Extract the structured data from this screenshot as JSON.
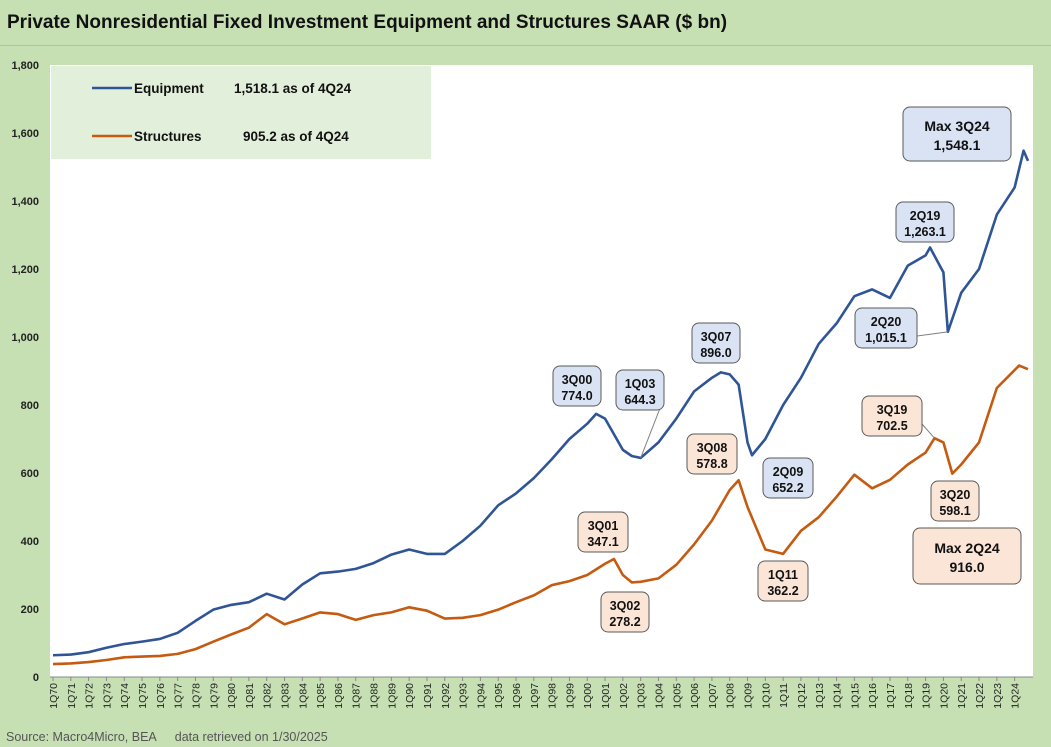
{
  "title": "Private Nonresidential Fixed Investment Equipment and Structures SAAR ($ bn)",
  "source": "Source: Macro4Micro, BEA",
  "retrieved": "data retrieved on 1/30/2025",
  "colors": {
    "equipment": "#2f5597",
    "structures": "#c55a11",
    "plot_bg": "#ffffff",
    "frame_bg": "#c6e0b4",
    "legend_bg": "#e2efda",
    "eq_callout_bg": "#dae3f3",
    "st_callout_bg": "#fbe5d6"
  },
  "legend": [
    {
      "series": "equipment",
      "name": "Equipment",
      "note": "1,518.1 as of 4Q24"
    },
    {
      "series": "structures",
      "name": "Structures",
      "note": "905.2 as of 4Q24"
    }
  ],
  "chart_data": {
    "type": "line",
    "x_start": "1Q70",
    "ylim": [
      0,
      1800
    ],
    "yticks": [
      0,
      200,
      400,
      600,
      800,
      1000,
      1200,
      1400,
      1600,
      1800
    ],
    "ytick_labels": [
      "0",
      "200",
      "400",
      "600",
      "800",
      "1,000",
      "1,200",
      "1,400",
      "1,600",
      "1,800"
    ],
    "xtick_labels": [
      "1Q70",
      "1Q71",
      "1Q72",
      "1Q73",
      "1Q74",
      "1Q75",
      "1Q76",
      "1Q77",
      "1Q78",
      "1Q79",
      "1Q80",
      "1Q81",
      "1Q82",
      "1Q83",
      "1Q84",
      "1Q85",
      "1Q86",
      "1Q87",
      "1Q88",
      "1Q89",
      "1Q90",
      "1Q91",
      "1Q92",
      "1Q93",
      "1Q94",
      "1Q95",
      "1Q96",
      "1Q97",
      "1Q98",
      "1Q99",
      "1Q00",
      "1Q01",
      "1Q02",
      "1Q03",
      "1Q04",
      "1Q05",
      "1Q06",
      "1Q07",
      "1Q08",
      "1Q09",
      "1Q10",
      "1Q11",
      "1Q12",
      "1Q13",
      "1Q14",
      "1Q15",
      "1Q16",
      "1Q17",
      "1Q18",
      "1Q19",
      "1Q20",
      "1Q21",
      "1Q22",
      "1Q23",
      "1Q24"
    ],
    "grid": false,
    "legend_position": "top-left",
    "series": [
      {
        "name": "Equipment",
        "key": "equipment",
        "points": [
          [
            "1Q70",
            64
          ],
          [
            "1Q71",
            66
          ],
          [
            "1Q72",
            73
          ],
          [
            "1Q73",
            86
          ],
          [
            "1Q74",
            97
          ],
          [
            "1Q75",
            104
          ],
          [
            "1Q76",
            112
          ],
          [
            "1Q77",
            130
          ],
          [
            "1Q78",
            165
          ],
          [
            "1Q79",
            198
          ],
          [
            "1Q80",
            212
          ],
          [
            "1Q81",
            220
          ],
          [
            "1Q82",
            245
          ],
          [
            "1Q83",
            228
          ],
          [
            "1Q84",
            272
          ],
          [
            "1Q85",
            305
          ],
          [
            "1Q86",
            310
          ],
          [
            "1Q87",
            318
          ],
          [
            "1Q88",
            335
          ],
          [
            "1Q89",
            360
          ],
          [
            "1Q90",
            375
          ],
          [
            "1Q91",
            362
          ],
          [
            "1Q92",
            362
          ],
          [
            "1Q93",
            400
          ],
          [
            "1Q94",
            445
          ],
          [
            "1Q95",
            505
          ],
          [
            "1Q96",
            540
          ],
          [
            "1Q97",
            585
          ],
          [
            "1Q98",
            640
          ],
          [
            "1Q99",
            700
          ],
          [
            "1Q00",
            745
          ],
          [
            "3Q00",
            774.0
          ],
          [
            "1Q01",
            760
          ],
          [
            "1Q02",
            668
          ],
          [
            "3Q02",
            650
          ],
          [
            "1Q03",
            644.3
          ],
          [
            "1Q04",
            690
          ],
          [
            "1Q05",
            760
          ],
          [
            "1Q06",
            840
          ],
          [
            "1Q07",
            880
          ],
          [
            "3Q07",
            896.0
          ],
          [
            "1Q08",
            890
          ],
          [
            "3Q08",
            860
          ],
          [
            "1Q09",
            690
          ],
          [
            "2Q09",
            652.2
          ],
          [
            "1Q10",
            700
          ],
          [
            "1Q11",
            800
          ],
          [
            "1Q12",
            880
          ],
          [
            "1Q13",
            980
          ],
          [
            "1Q14",
            1040
          ],
          [
            "1Q15",
            1120
          ],
          [
            "1Q16",
            1140
          ],
          [
            "1Q17",
            1115
          ],
          [
            "1Q18",
            1210
          ],
          [
            "1Q19",
            1240
          ],
          [
            "2Q19",
            1263.1
          ],
          [
            "1Q20",
            1190
          ],
          [
            "2Q20",
            1015.1
          ],
          [
            "1Q21",
            1130
          ],
          [
            "1Q22",
            1200
          ],
          [
            "1Q23",
            1360
          ],
          [
            "1Q24",
            1440
          ],
          [
            "3Q24",
            1548.1
          ],
          [
            "4Q24",
            1518.1
          ]
        ]
      },
      {
        "name": "Structures",
        "key": "structures",
        "points": [
          [
            "1Q70",
            38
          ],
          [
            "1Q71",
            40
          ],
          [
            "1Q72",
            44
          ],
          [
            "1Q73",
            50
          ],
          [
            "1Q74",
            58
          ],
          [
            "1Q75",
            60
          ],
          [
            "1Q76",
            62
          ],
          [
            "1Q77",
            68
          ],
          [
            "1Q78",
            82
          ],
          [
            "1Q79",
            104
          ],
          [
            "1Q80",
            125
          ],
          [
            "1Q81",
            145
          ],
          [
            "1Q82",
            185
          ],
          [
            "1Q83",
            155
          ],
          [
            "1Q84",
            172
          ],
          [
            "1Q85",
            190
          ],
          [
            "1Q86",
            185
          ],
          [
            "1Q87",
            168
          ],
          [
            "1Q88",
            182
          ],
          [
            "1Q89",
            190
          ],
          [
            "1Q90",
            205
          ],
          [
            "1Q91",
            195
          ],
          [
            "1Q92",
            172
          ],
          [
            "1Q93",
            174
          ],
          [
            "1Q94",
            182
          ],
          [
            "1Q95",
            198
          ],
          [
            "1Q96",
            220
          ],
          [
            "1Q97",
            240
          ],
          [
            "1Q98",
            270
          ],
          [
            "1Q99",
            282
          ],
          [
            "1Q00",
            300
          ],
          [
            "1Q01",
            333
          ],
          [
            "3Q01",
            347.1
          ],
          [
            "1Q02",
            300
          ],
          [
            "3Q02",
            278.2
          ],
          [
            "1Q03",
            280
          ],
          [
            "1Q04",
            290
          ],
          [
            "1Q05",
            330
          ],
          [
            "1Q06",
            390
          ],
          [
            "1Q07",
            460
          ],
          [
            "1Q08",
            550
          ],
          [
            "3Q08",
            578.8
          ],
          [
            "1Q09",
            500
          ],
          [
            "1Q10",
            375
          ],
          [
            "1Q11",
            362.2
          ],
          [
            "1Q12",
            430
          ],
          [
            "1Q13",
            470
          ],
          [
            "1Q14",
            530
          ],
          [
            "1Q15",
            595
          ],
          [
            "1Q16",
            555
          ],
          [
            "1Q17",
            580
          ],
          [
            "1Q18",
            625
          ],
          [
            "1Q19",
            660
          ],
          [
            "3Q19",
            702.5
          ],
          [
            "1Q20",
            690
          ],
          [
            "3Q20",
            598.1
          ],
          [
            "1Q21",
            625
          ],
          [
            "1Q22",
            690
          ],
          [
            "1Q23",
            850
          ],
          [
            "2Q24",
            916.0
          ],
          [
            "4Q24",
            905.2
          ]
        ]
      }
    ],
    "annotations": [
      {
        "series": "equipment",
        "period": "3Q00",
        "label": [
          "3Q00",
          "774.0"
        ]
      },
      {
        "series": "equipment",
        "period": "1Q03",
        "label": [
          "1Q03",
          "644.3"
        ]
      },
      {
        "series": "equipment",
        "period": "3Q07",
        "label": [
          "3Q07",
          "896.0"
        ]
      },
      {
        "series": "equipment",
        "period": "2Q09",
        "label": [
          "2Q09",
          "652.2"
        ]
      },
      {
        "series": "equipment",
        "period": "2Q19",
        "label": [
          "2Q19",
          "1,263.1"
        ]
      },
      {
        "series": "equipment",
        "period": "2Q20",
        "label": [
          "2Q20",
          "1,015.1"
        ]
      },
      {
        "series": "equipment",
        "period": "3Q24",
        "label": [
          "Max 3Q24",
          "1,548.1"
        ]
      },
      {
        "series": "structures",
        "period": "3Q01",
        "label": [
          "3Q01",
          "347.1"
        ]
      },
      {
        "series": "structures",
        "period": "3Q02",
        "label": [
          "3Q02",
          "278.2"
        ]
      },
      {
        "series": "structures",
        "period": "3Q08",
        "label": [
          "3Q08",
          "578.8"
        ]
      },
      {
        "series": "structures",
        "period": "1Q11",
        "label": [
          "1Q11",
          "362.2"
        ]
      },
      {
        "series": "structures",
        "period": "3Q19",
        "label": [
          "3Q19",
          "702.5"
        ]
      },
      {
        "series": "structures",
        "period": "3Q20",
        "label": [
          "3Q20",
          "598.1"
        ]
      },
      {
        "series": "structures",
        "period": "2Q24",
        "label": [
          "Max 2Q24",
          "916.0"
        ]
      }
    ]
  }
}
